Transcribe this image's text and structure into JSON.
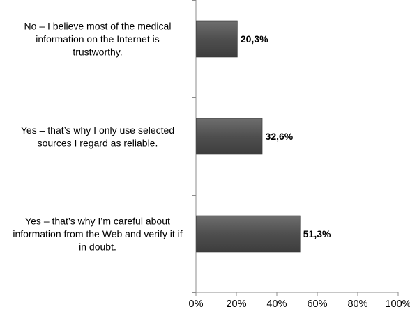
{
  "chart_data": {
    "type": "bar",
    "orientation": "horizontal",
    "categories": [
      [
        "No – I believe most of the medical",
        "information on the Internet is",
        "trustworthy."
      ],
      [
        "Yes – that’s why I only use selected",
        "sources I regard as reliable."
      ],
      [
        "Yes – that’s why I’m careful about",
        "information from the Web and verify it if",
        "in doubt."
      ]
    ],
    "values": [
      20.3,
      32.6,
      51.3
    ],
    "data_labels": [
      "20,3%",
      "32,6%",
      "51,3%"
    ],
    "xlim": [
      0,
      100
    ],
    "x_ticks": [
      0,
      20,
      40,
      60,
      80,
      100
    ],
    "x_tick_labels": [
      "0%",
      "20%",
      "40%",
      "60%",
      "80%",
      "100%"
    ],
    "grid": false,
    "legend": "none",
    "bar_color": "#4f4f4f",
    "bar_gradient_light": "#6e6e6e",
    "bar_gradient_dark": "#3d3d3d",
    "axis_color": "#8c8c8c"
  }
}
